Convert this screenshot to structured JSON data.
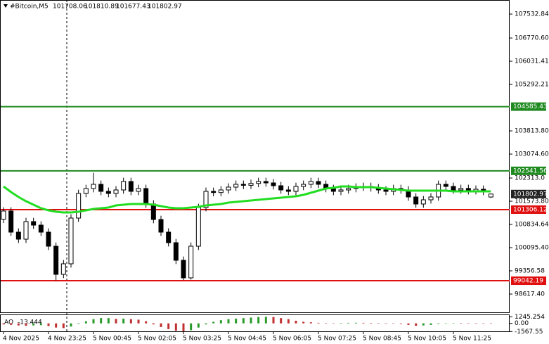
{
  "chart_data": {
    "type": "candlestick",
    "symbol": "#Bitcoin,M5",
    "categories": [
      "4 Nov 2025",
      null,
      null,
      null,
      null,
      null,
      "4 Nov 23:25",
      null,
      null,
      null,
      null,
      null,
      "5 Nov 00:45",
      null,
      null,
      null,
      null,
      null,
      "5 Nov 02:05",
      null,
      null,
      null,
      null,
      null,
      "5 Nov 03:25",
      null,
      null,
      null,
      null,
      null,
      "5 Nov 04:45",
      null,
      null,
      null,
      null,
      null,
      "5 Nov 06:05",
      null,
      null,
      null,
      null,
      null,
      "5 Nov 07:25",
      null,
      null,
      null,
      null,
      null,
      "5 Nov 08:45",
      null,
      null,
      null,
      null,
      null,
      "5 Nov 10:05",
      null,
      null,
      null,
      null,
      null,
      "5 Nov 11:25",
      null,
      null,
      null,
      null,
      null
    ],
    "open": [
      101000,
      101261,
      100589,
      100365,
      100925,
      100813,
      100589,
      100141,
      99245,
      99581,
      101037,
      101821,
      101978,
      102112,
      101888,
      101821,
      101933,
      102202,
      101888,
      101978,
      101485,
      100992,
      100589,
      100253,
      99693,
      99133,
      100141,
      101373,
      101888,
      101850,
      101933,
      102023,
      102112,
      102080,
      102140,
      102202,
      102157,
      102067,
      101933,
      101888,
      102045,
      102112,
      102202,
      102112,
      101978,
      101888,
      101933,
      101978,
      102023,
      102045,
      102000,
      101933,
      101888,
      101978,
      101933,
      101709,
      101485,
      101619,
      101709,
      102112,
      102045,
      101933,
      101980,
      101910,
      101955,
      101708.06
    ],
    "high": [
      101381,
      101381,
      100709,
      101045,
      101045,
      100933,
      100709,
      100261,
      99701,
      101157,
      101941,
      102098,
      102480,
      102232,
      102008,
      102053,
      102322,
      102322,
      102098,
      102098,
      101605,
      101112,
      100709,
      100373,
      99813,
      100261,
      101493,
      102008,
      102008,
      102053,
      102143,
      102232,
      102232,
      102260,
      102322,
      102322,
      102277,
      102187,
      102053,
      102165,
      102232,
      102322,
      102322,
      102232,
      102098,
      102053,
      102098,
      102143,
      102165,
      102165,
      102120,
      102053,
      102098,
      102098,
      102053,
      101829,
      101739,
      101829,
      102232,
      102232,
      102165,
      102100,
      102100,
      102075,
      102075,
      101810.89
    ],
    "low": [
      100880,
      100469,
      100245,
      100245,
      100693,
      100469,
      100021,
      99050,
      99125,
      99461,
      100917,
      101701,
      101858,
      101768,
      101701,
      101701,
      101813,
      101768,
      101768,
      101365,
      100872,
      100469,
      100133,
      99573,
      99060,
      99080,
      100021,
      101253,
      101730,
      101730,
      101813,
      101903,
      101960,
      101960,
      102020,
      102037,
      101947,
      101813,
      101768,
      101768,
      101925,
      101992,
      101992,
      101858,
      101768,
      101768,
      101813,
      101858,
      101903,
      101880,
      101813,
      101768,
      101768,
      101813,
      101589,
      101365,
      101365,
      101499,
      101589,
      101925,
      101813,
      101813,
      101790,
      101790,
      101768,
      101677.43
    ],
    "close": [
      101261,
      100589,
      100365,
      100925,
      100813,
      100589,
      100141,
      99245,
      99581,
      101037,
      101821,
      101978,
      102112,
      101888,
      101821,
      101933,
      102202,
      101888,
      101978,
      101485,
      100992,
      100589,
      100253,
      99693,
      99133,
      100141,
      101373,
      101888,
      101850,
      101933,
      102023,
      102112,
      102080,
      102140,
      102202,
      102157,
      102067,
      101933,
      101888,
      102045,
      102112,
      102202,
      102112,
      101978,
      101888,
      101933,
      101978,
      102023,
      102045,
      102000,
      101933,
      101888,
      101978,
      101933,
      101709,
      101485,
      101619,
      101709,
      102112,
      102045,
      101933,
      101980,
      101910,
      101955,
      101888,
      101802.97
    ],
    "up_color": "#ffffff",
    "down_color": "#000000",
    "ma": {
      "color": "#22dd22",
      "values": [
        102045,
        101866,
        101709,
        101575,
        101463,
        101351,
        101283,
        101239,
        101216,
        101216,
        101239,
        101283,
        101328,
        101351,
        101373,
        101440,
        101463,
        101485,
        101485,
        101485,
        101463,
        101418,
        101373,
        101351,
        101351,
        101373,
        101395,
        101440,
        101463,
        101485,
        101530,
        101552,
        101575,
        101597,
        101619,
        101642,
        101664,
        101687,
        101709,
        101731,
        101776,
        101843,
        101910,
        101978,
        102000,
        102045,
        102045,
        102023,
        102023,
        102023,
        102000,
        101978,
        101955,
        101933,
        101910,
        101910,
        101910,
        101910,
        101910,
        101910,
        101888,
        101888,
        101888,
        101888,
        101888,
        101888
      ]
    },
    "levels": [
      {
        "value": 104585.43,
        "color": "#1f8a1f"
      },
      {
        "value": 102541.56,
        "color": "#1f8a1f"
      },
      {
        "value": 101306.12,
        "color": "#e01010"
      },
      {
        "value": 99042.19,
        "color": "#e01010"
      }
    ],
    "ylim": [
      97990.44,
      107980.84
    ],
    "yticks": [
      107532.84,
      {
        "value": 106770.6,
        "label": "106770.60"
      },
      106031.41,
      105292.21,
      {
        "value": 103813.8,
        "label": "103813.80"
      },
      {
        "value": 103074.6,
        "label": "103074.60"
      },
      {
        "value": 102313.0,
        "label": "102313.0"
      },
      {
        "value": 101573.8,
        "label": "101573.80"
      },
      100834.64,
      {
        "value": 100095.4,
        "label": "100095.40"
      },
      99356.58,
      {
        "value": 98617.4,
        "label": "98617.40"
      }
    ],
    "ao": {
      "name": "AO",
      "up_color": "#2a9a2a",
      "down_color": "#c03030",
      "values": [
        -200,
        -300,
        -400,
        -450,
        -400,
        -350,
        -500,
        -800,
        -900,
        -600,
        -100,
        400,
        800,
        1000,
        1000,
        850,
        900,
        800,
        700,
        400,
        -200,
        -700,
        -1100,
        -1400,
        -1500,
        -1300,
        -800,
        -200,
        300,
        600,
        800,
        900,
        1000,
        1100,
        1200,
        1250,
        1200,
        1000,
        800,
        500,
        300,
        200,
        100,
        50,
        -50,
        50,
        100,
        120,
        100,
        80,
        50,
        0,
        -50,
        -100,
        -300,
        -450,
        -400,
        -300,
        -100,
        0,
        50,
        40,
        30,
        20,
        0,
        -13.444
      ],
      "ylim": [
        -1650,
        1826
      ],
      "yticks": [
        1245.254,
        {
          "value": 0,
          "label": "0.00"
        },
        -1567.55
      ]
    }
  }
}
